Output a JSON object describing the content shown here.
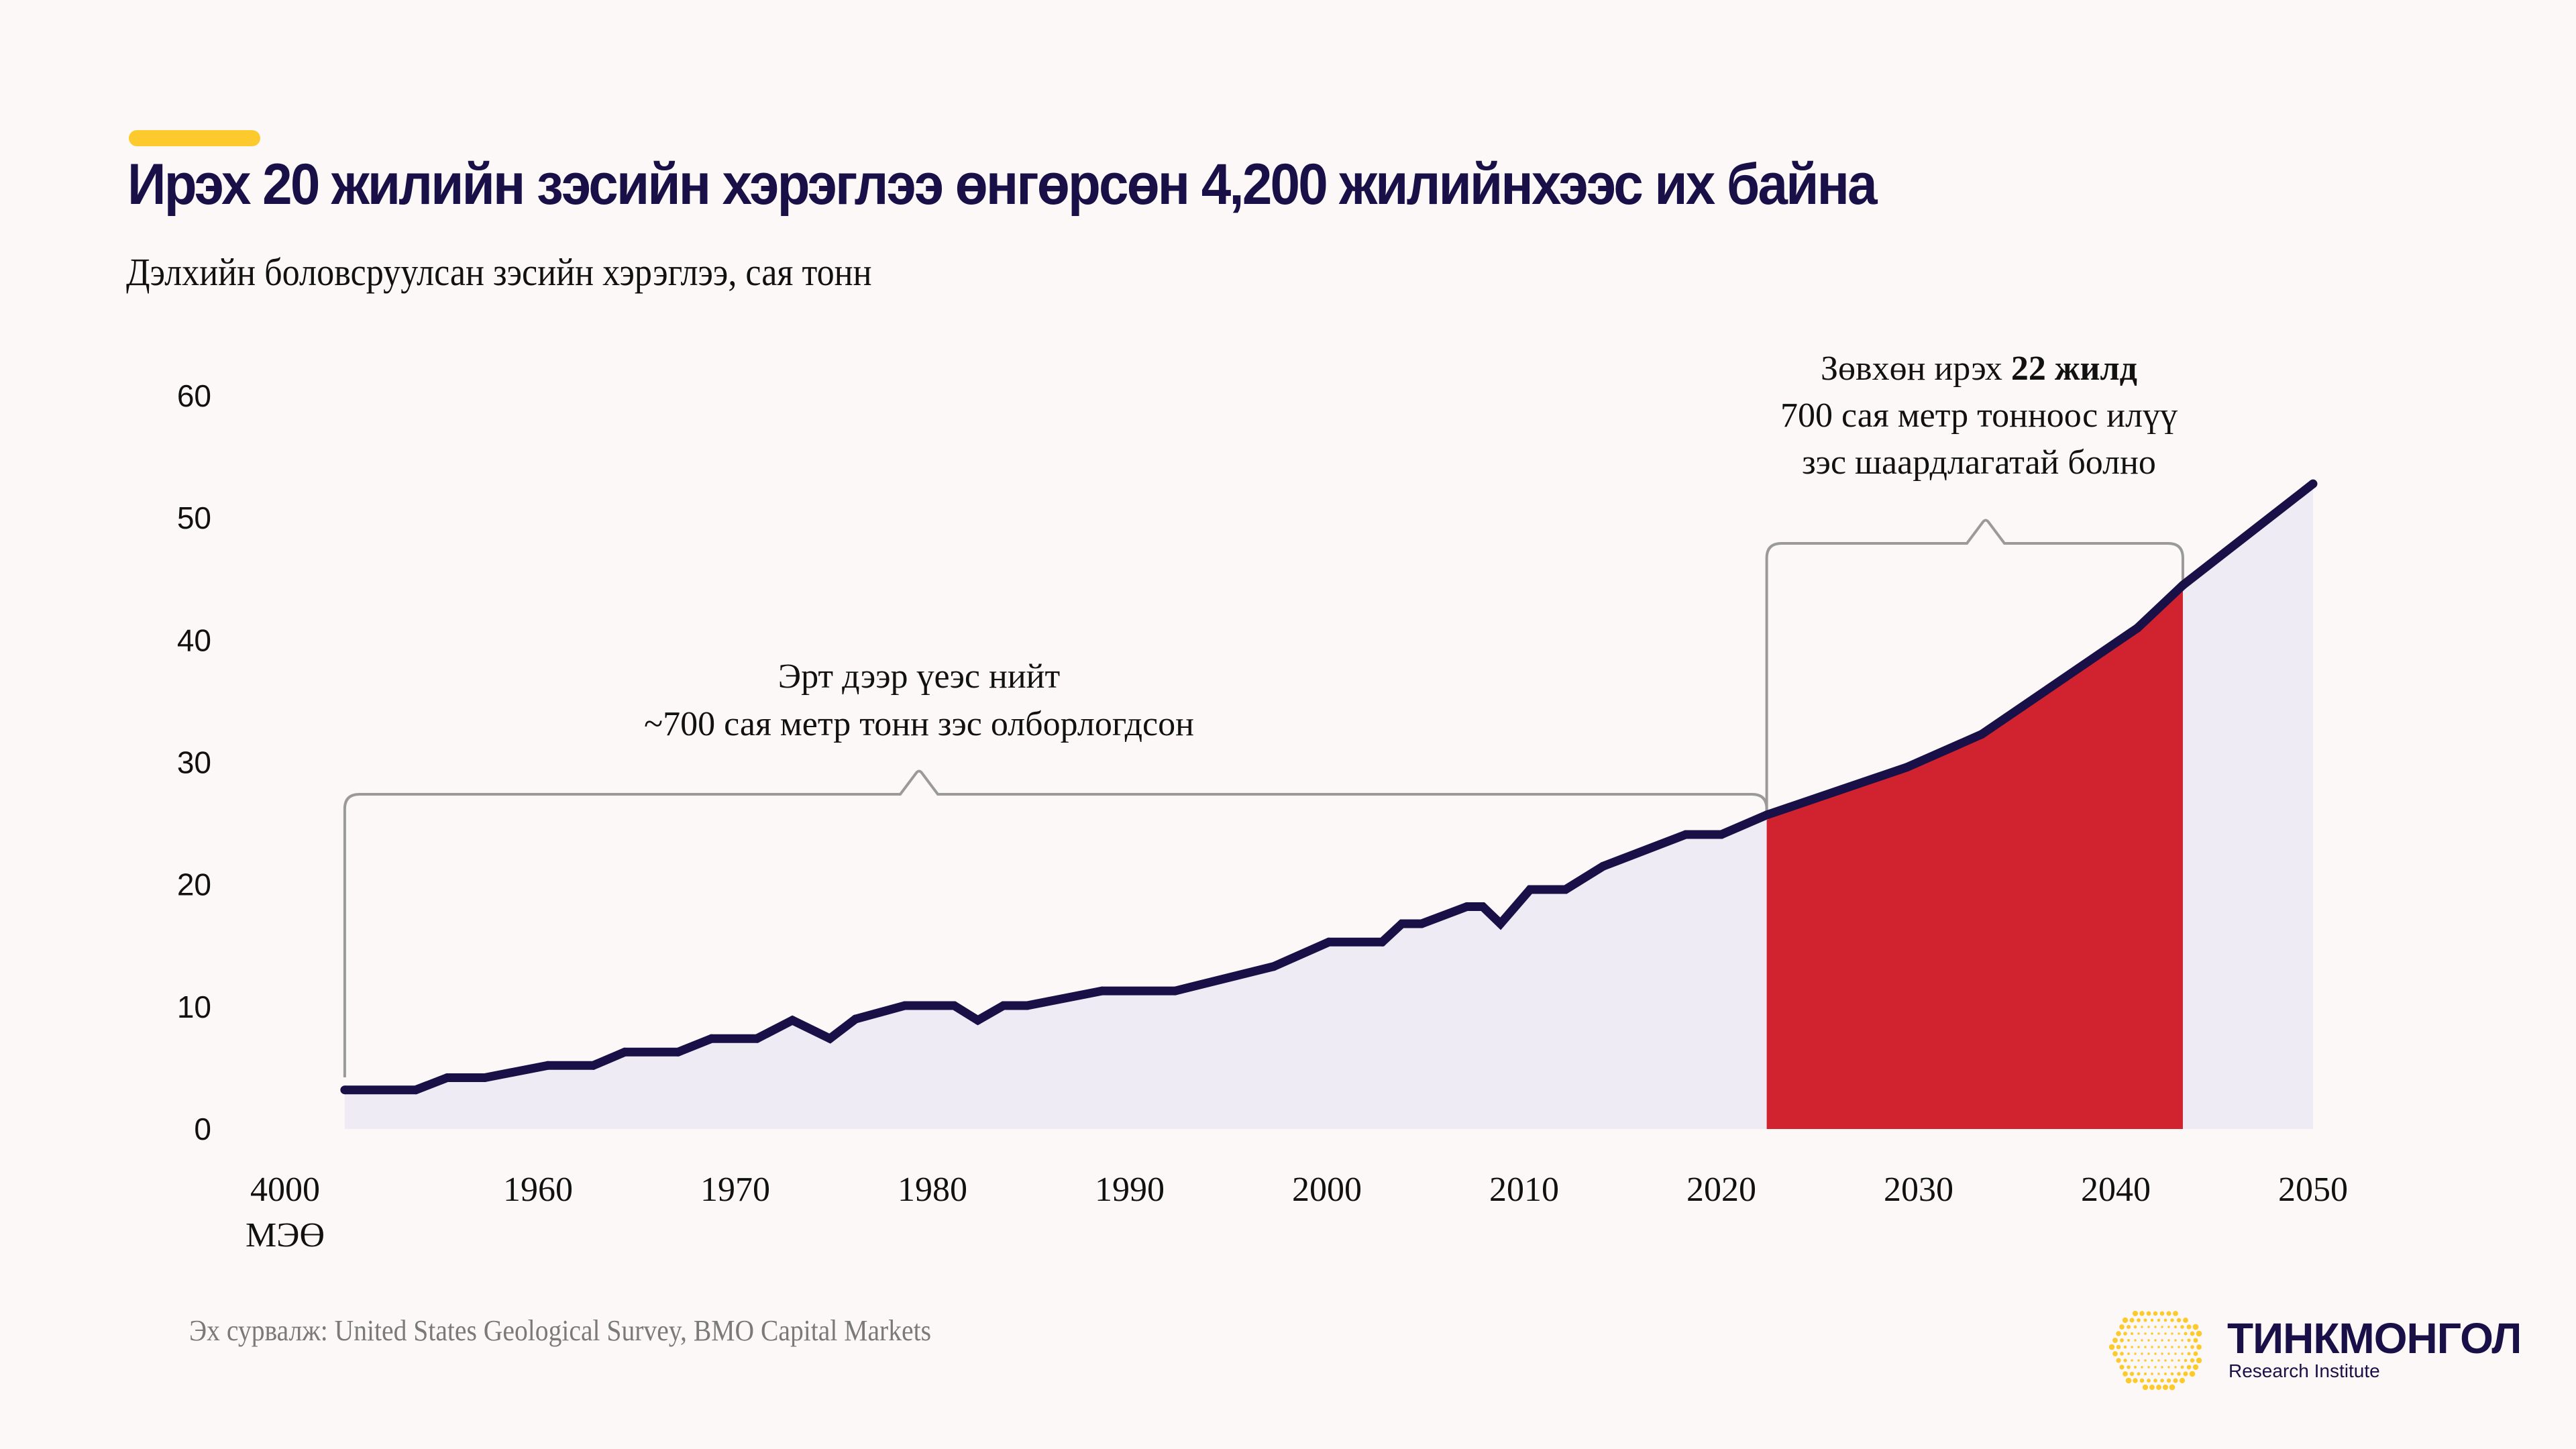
{
  "header": {
    "title": "Ирэх 20 жилийн зэсийн хэрэглээ өнгөрсөн 4,200 жилийнхээс их байна",
    "subtitle": "Дэлхийн боловсруулсан зэсийн хэрэглээ, сая тонн"
  },
  "colors": {
    "accent": "#fdca2e",
    "line": "#181047",
    "area": "#eeebf5",
    "highlight": "#d0232f",
    "bracket": "#9a9a9a",
    "background": "#fdf8f8"
  },
  "annotations": {
    "past": {
      "line1": "Эрт дээр үеэс нийт",
      "line2": "~700 сая метр тонн зэс олборлогдсон"
    },
    "future": {
      "line1_regular": "Зөвхөн ирэх ",
      "line1_bold": "22 жилд",
      "line2": "700 сая метр тонноос илүү",
      "line3": "зэс шаардлагатай болно"
    }
  },
  "source": "Эх сурвалж: United States Geological Survey, BMO Capital Markets",
  "logo": {
    "name": "ТИНКМОНГОЛ",
    "subtitle": "Research Institute"
  },
  "chart_data": {
    "type": "area",
    "title": "Ирэх 20 жилийн зэсийн хэрэглээ өнгөрсөн 4,200 жилийнхээс их байна",
    "ylabel": "Дэлхийн боловсруулсан зэсийн хэрэглээ, сая тонн",
    "xlabel": "",
    "ylim": [
      0,
      60
    ],
    "yticks": [
      0,
      10,
      20,
      30,
      40,
      50,
      60
    ],
    "xlim": [
      1950,
      2050
    ],
    "xtick_labels": [
      {
        "x": 1951,
        "label": "4000",
        "label2": "МЭӨ"
      },
      {
        "x": 1960,
        "label": "1960"
      },
      {
        "x": 1970,
        "label": "1970"
      },
      {
        "x": 1980,
        "label": "1980"
      },
      {
        "x": 1990,
        "label": "1990"
      },
      {
        "x": 2000,
        "label": "2000"
      },
      {
        "x": 2010,
        "label": "2010"
      },
      {
        "x": 2020,
        "label": "2020"
      },
      {
        "x": 2030,
        "label": "2030"
      },
      {
        "x": 2040,
        "label": "2040"
      },
      {
        "x": 2050,
        "label": "2050"
      }
    ],
    "grid": false,
    "series": [
      {
        "name": "Зэсийн хэрэглээ",
        "x": [
          1950.2,
          1953.8,
          1955.4,
          1957.3,
          1960.5,
          1962.8,
          1964.4,
          1967.1,
          1968.8,
          1971.1,
          1972.9,
          1974.8,
          1976.1,
          1978.6,
          1981.1,
          1982.3,
          1983.6,
          1984.8,
          1988.6,
          1992.3,
          1997.3,
          2000.1,
          2002.8,
          2003.8,
          2004.8,
          2007.1,
          2007.9,
          2008.8,
          2010.3,
          2012.1,
          2014.0,
          2018.2,
          2020.0,
          2022.3,
          2029.4,
          2033.2,
          2041.1,
          2043.4,
          2050.0
        ],
        "y": [
          3.2,
          3.2,
          4.2,
          4.2,
          5.2,
          5.2,
          6.3,
          6.3,
          7.4,
          7.4,
          8.9,
          7.4,
          9.0,
          10.1,
          10.1,
          8.9,
          10.1,
          10.1,
          11.3,
          11.3,
          13.3,
          15.3,
          15.3,
          16.8,
          16.8,
          18.2,
          18.2,
          16.8,
          19.6,
          19.6,
          21.5,
          24.1,
          24.1,
          25.7,
          29.6,
          32.3,
          41.0,
          44.5,
          52.8
        ]
      }
    ],
    "highlight_range": [
      2022.3,
      2043.4
    ],
    "brackets": [
      {
        "from": 1950.2,
        "to": 2022.3,
        "label": "Эрт дээр үеэс нийт ~700 сая метр тонн зэс олборлогдсон"
      },
      {
        "from": 2022.3,
        "to": 2043.4,
        "label": "Зөвхөн ирэх 22 жилд 700 сая метр тонноос илүү зэс шаардлагатай болно"
      }
    ]
  }
}
